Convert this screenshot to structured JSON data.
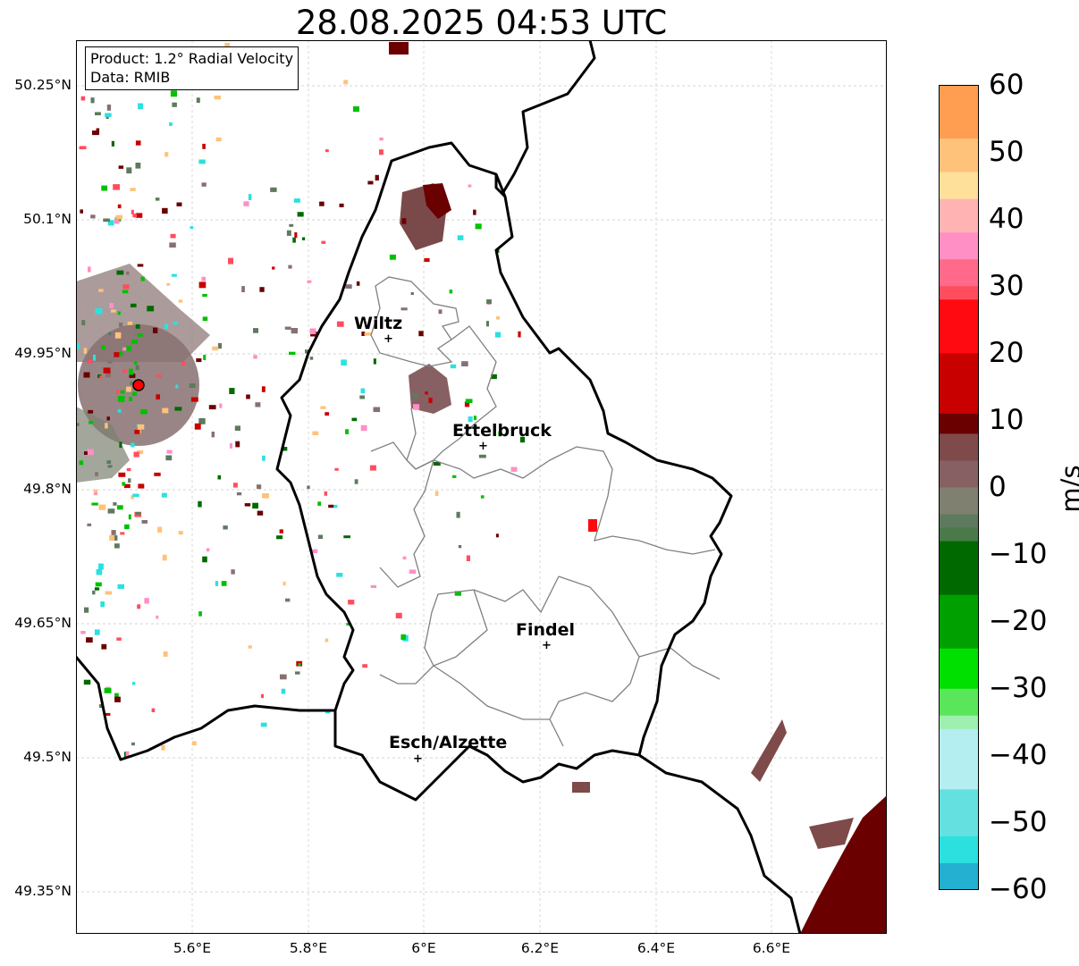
{
  "title": "28.08.2025 04:53 UTC",
  "info_box": {
    "product": "Product: 1.2° Radial Velocity",
    "data": "Data: RMIB"
  },
  "axes": {
    "lat_ticks": [
      "50.25°N",
      "50.1°N",
      "49.95°N",
      "49.8°N",
      "49.65°N",
      "49.5°N",
      "49.35°N"
    ],
    "lon_ticks": [
      "5.6°E",
      "5.8°E",
      "6°E",
      "6.2°E",
      "6.4°E",
      "6.6°E"
    ],
    "grid": true,
    "gridline_style": "dashed light gray"
  },
  "cities": [
    {
      "name": "Wiltz",
      "lon": 5.935,
      "lat": 49.966
    },
    {
      "name": "Ettelbruck",
      "lon": 6.102,
      "lat": 49.846
    },
    {
      "name": "Findel",
      "lon": 6.21,
      "lat": 49.623
    },
    {
      "name": "Esch/Alzette",
      "lon": 5.99,
      "lat": 49.496
    }
  ],
  "radar_site": {
    "lon": 5.505,
    "lat": 49.914,
    "marker_color": "#ff0000"
  },
  "colorbar": {
    "label": "m/s",
    "min": -60,
    "max": 60,
    "tick_labels": [
      "60",
      "50",
      "40",
      "30",
      "20",
      "10",
      "0",
      "−10",
      "−20",
      "−30",
      "−40",
      "−50",
      "−60"
    ],
    "color_stops": [
      {
        "value": 60,
        "color": "#ff9e50"
      },
      {
        "value": 52,
        "color": "#ffc27a"
      },
      {
        "value": 47,
        "color": "#ffe09a"
      },
      {
        "value": 43,
        "color": "#ffb3b3"
      },
      {
        "value": 38,
        "color": "#ff8fc4"
      },
      {
        "value": 34,
        "color": "#ff6a8a"
      },
      {
        "value": 30,
        "color": "#ff4d5e"
      },
      {
        "value": 28,
        "color": "#ff0a10"
      },
      {
        "value": 20,
        "color": "#c80000"
      },
      {
        "value": 11,
        "color": "#6a0000"
      },
      {
        "value": 8,
        "color": "#7e4a4a"
      },
      {
        "value": 4,
        "color": "#876063"
      },
      {
        "value": 0,
        "color": "#808070"
      },
      {
        "value": -4,
        "color": "#5e7a5e"
      },
      {
        "value": -6,
        "color": "#4a7a4a"
      },
      {
        "value": -8,
        "color": "#006a00"
      },
      {
        "value": -16,
        "color": "#00a000"
      },
      {
        "value": -24,
        "color": "#00e000"
      },
      {
        "value": -30,
        "color": "#5ae65a"
      },
      {
        "value": -34,
        "color": "#9ef0b0"
      },
      {
        "value": -36,
        "color": "#b4eef0"
      },
      {
        "value": -45,
        "color": "#64e0e0"
      },
      {
        "value": -52,
        "color": "#2ce0e0"
      },
      {
        "value": -56,
        "color": "#24b0d0"
      },
      {
        "value": -60,
        "color": "#2080c0"
      }
    ]
  }
}
